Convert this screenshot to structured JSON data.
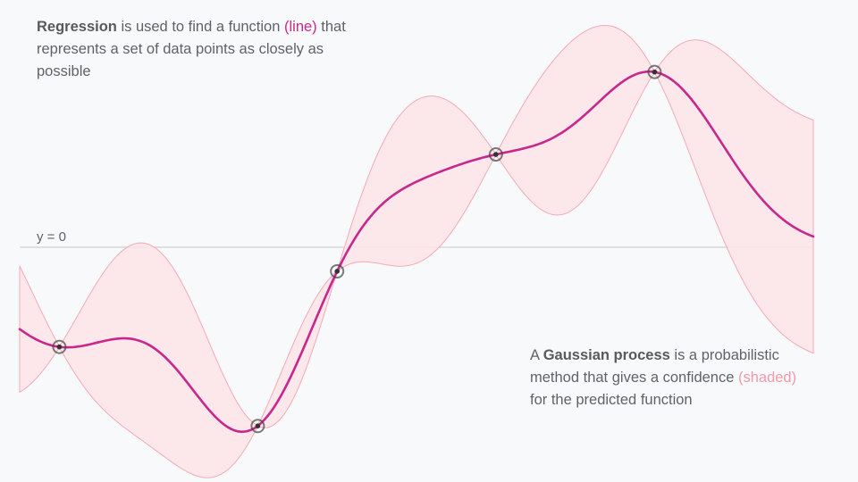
{
  "colors": {
    "background": "#f8f9fa",
    "text": "#5f6368",
    "line": "#c8288c",
    "band_fill": "#fde4e7",
    "band_stroke": "#f6a9b6",
    "axis": "#cfd1d4",
    "marker": "#444444",
    "emph_line": "#c8288c",
    "emph_shaded": "#f199aa"
  },
  "captions": {
    "regression": {
      "strong": "Regression",
      "pre": " is used to find a function ",
      "emph": "(line)",
      "post": " that represents a set of data points as closely as possible"
    },
    "gaussian": {
      "pre": "A ",
      "strong": "Gaussian process",
      "mid": " is a probabilistic method that gives a confidence ",
      "emph": "(shaded)",
      "post": " for the predicted function"
    }
  },
  "axis": {
    "label": "y = 0"
  },
  "observations": [
    {
      "x": 0.05,
      "y": -1.45
    },
    {
      "x": 0.3,
      "y": -2.6
    },
    {
      "x": 0.4,
      "y": -0.35
    },
    {
      "x": 0.6,
      "y": 1.35
    },
    {
      "x": 0.8,
      "y": 2.55
    }
  ]
}
